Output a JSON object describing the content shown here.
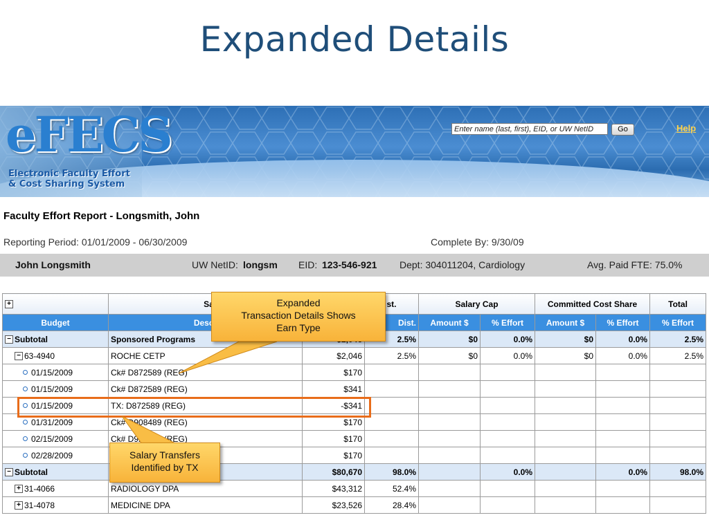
{
  "slide": {
    "title": "Expanded Details"
  },
  "banner": {
    "logo": "eFECS",
    "subtitle_line1": "Electronic Faculty Effort",
    "subtitle_line2": "& Cost Sharing System",
    "search_placeholder": "Enter name (last, first), EID, or UW NetID",
    "go_label": "Go",
    "help_label": "Help"
  },
  "report": {
    "title_prefix": "Faculty Effort Report -",
    "person": "Longsmith, John",
    "reporting_period": "Reporting Period:  01/01/2009 - 06/30/2009",
    "complete_by": "Complete By: 9/30/09"
  },
  "info": {
    "name": "John Longsmith",
    "netid_label": "UW NetID:",
    "netid": "longsm",
    "eid_label": "EID:",
    "eid": "123-546-921",
    "dept": "Dept: 304011204, Cardiology",
    "fte": "Avg. Paid FTE: 75.0%"
  },
  "table": {
    "group_headers": {
      "salary_sources": "Salary Source(s)",
      "dist": "st.",
      "salary_cap": "Salary Cap",
      "committed": "Committed Cost Share",
      "total": "Total"
    },
    "columns": [
      "Budget",
      "Descr",
      "",
      "Dist.",
      "Amount $",
      "% Effort",
      "Amount $",
      "% Effort",
      "% Effort"
    ],
    "rows": [
      {
        "kind": "subtotal",
        "toggle": "−",
        "budget": "Subtotal",
        "desc": "Sponsored Programs",
        "amount": "$2,046",
        "dist": "2.5%",
        "cap_amt": "$0",
        "cap_eff": "0.0%",
        "cs_amt": "$0",
        "cs_eff": "0.0%",
        "total": "2.5%"
      },
      {
        "kind": "budget",
        "toggle": "−",
        "budget": "63-4940",
        "desc": "ROCHE CETP",
        "amount": "$2,046",
        "dist": "2.5%",
        "cap_amt": "$0",
        "cap_eff": "0.0%",
        "cs_amt": "$0",
        "cs_eff": "0.0%",
        "total": "2.5%"
      },
      {
        "kind": "txn",
        "budget": "01/15/2009",
        "desc": "Ck# D872589 (REG)",
        "amount": "$170"
      },
      {
        "kind": "txn",
        "budget": "01/15/2009",
        "desc": "Ck# D872589 (REG)",
        "amount": "$341"
      },
      {
        "kind": "txn",
        "budget": "01/15/2009",
        "desc": "TX: D872589 (REG)",
        "amount": "-$341"
      },
      {
        "kind": "txn",
        "budget": "01/31/2009",
        "desc": "Ck# D908489 (REG)",
        "amount": "$170"
      },
      {
        "kind": "txn",
        "budget": "02/15/2009",
        "desc": "Ck# D924215 (REG)",
        "amount": "$170"
      },
      {
        "kind": "txn",
        "budget": "02/28/2009",
        "desc": "",
        "amount": "$170"
      },
      {
        "kind": "subtotal",
        "toggle": "−",
        "budget": "Subtotal",
        "desc": "",
        "amount": "$80,670",
        "dist": "98.0%",
        "cap_amt": "",
        "cap_eff": "0.0%",
        "cs_amt": "",
        "cs_eff": "0.0%",
        "total": "98.0%"
      },
      {
        "kind": "budget",
        "toggle": "+",
        "budget": "31-4066",
        "desc": "RADIOLOGY DPA",
        "amount": "$43,312",
        "dist": "52.4%"
      },
      {
        "kind": "budget",
        "toggle": "+",
        "budget": "31-4078",
        "desc": "MEDICINE DPA",
        "amount": "$23,526",
        "dist": "28.4%"
      }
    ]
  },
  "callouts": {
    "expanded_line1": "Expanded",
    "expanded_line2": "Transaction Details Shows",
    "expanded_line3": "Earn Type",
    "tx_line1": "Salary Transfers",
    "tx_line2": "Identified by TX"
  }
}
